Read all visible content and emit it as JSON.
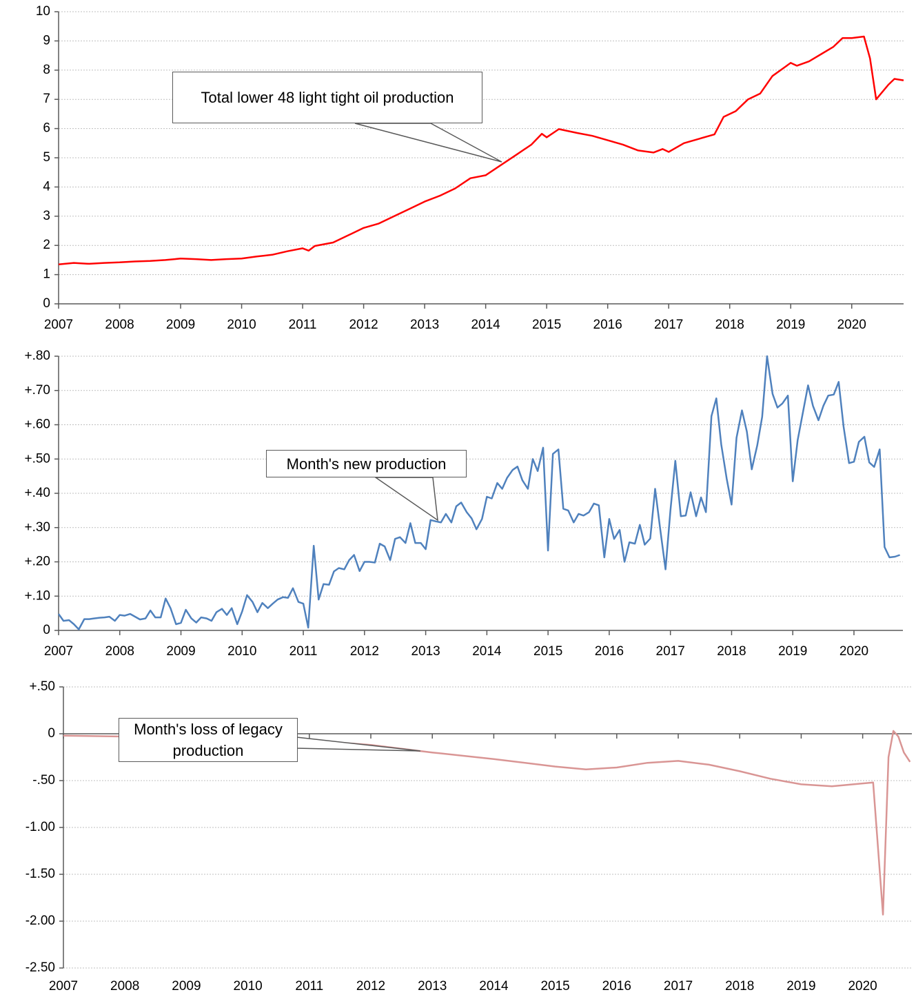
{
  "chart_data": [
    {
      "type": "line",
      "color": "#ff0000",
      "annotation": "Total lower 48 light tight oil production",
      "xlim": [
        2007,
        2020.85
      ],
      "xticks": [
        2007,
        2008,
        2009,
        2010,
        2011,
        2012,
        2013,
        2014,
        2015,
        2016,
        2017,
        2018,
        2019,
        2020
      ],
      "ylim": [
        0,
        10
      ],
      "yticks": [
        0,
        1,
        2,
        3,
        4,
        5,
        6,
        7,
        8,
        9,
        10
      ],
      "grid": true,
      "x": [
        2007,
        2007.25,
        2007.5,
        2007.75,
        2008,
        2008.25,
        2008.5,
        2008.75,
        2009,
        2009.25,
        2009.5,
        2009.75,
        2010,
        2010.25,
        2010.5,
        2010.75,
        2011,
        2011.1,
        2011.2,
        2011.5,
        2011.75,
        2012,
        2012.25,
        2012.5,
        2012.75,
        2013,
        2013.25,
        2013.5,
        2013.75,
        2014,
        2014.25,
        2014.5,
        2014.75,
        2014.92,
        2015,
        2015.2,
        2015.5,
        2015.75,
        2016,
        2016.25,
        2016.5,
        2016.75,
        2016.9,
        2017,
        2017.25,
        2017.5,
        2017.75,
        2017.9,
        2018.1,
        2018.3,
        2018.5,
        2018.7,
        2018.9,
        2019,
        2019.1,
        2019.3,
        2019.5,
        2019.7,
        2019.85,
        2020,
        2020.2,
        2020.3,
        2020.4,
        2020.6,
        2020.7,
        2020.85
      ],
      "values": [
        1.35,
        1.4,
        1.37,
        1.4,
        1.42,
        1.45,
        1.47,
        1.5,
        1.55,
        1.53,
        1.5,
        1.53,
        1.55,
        1.62,
        1.68,
        1.8,
        1.9,
        1.82,
        1.98,
        2.1,
        2.35,
        2.6,
        2.75,
        3.0,
        3.25,
        3.5,
        3.7,
        3.95,
        4.3,
        4.4,
        4.75,
        5.1,
        5.45,
        5.82,
        5.7,
        5.98,
        5.85,
        5.75,
        5.6,
        5.45,
        5.25,
        5.18,
        5.3,
        5.2,
        5.5,
        5.65,
        5.8,
        6.4,
        6.6,
        7.0,
        7.2,
        7.8,
        8.1,
        8.25,
        8.15,
        8.3,
        8.55,
        8.8,
        9.1,
        9.1,
        9.15,
        8.4,
        7.0,
        7.5,
        7.7,
        7.65
      ]
    },
    {
      "type": "line",
      "color": "#4f81bd",
      "annotation": "Month's new production",
      "xlim": [
        2007,
        2020.8
      ],
      "xticks": [
        2007,
        2008,
        2009,
        2010,
        2011,
        2012,
        2013,
        2014,
        2015,
        2016,
        2017,
        2018,
        2019,
        2020
      ],
      "ylim": [
        0,
        0.8
      ],
      "yticks": [
        0,
        {
          "value": 0.1,
          "label": "+.10"
        },
        {
          "value": 0.2,
          "label": "+.20"
        },
        {
          "value": 0.3,
          "label": "+.30"
        },
        {
          "value": 0.4,
          "label": "+.40"
        },
        {
          "value": 0.5,
          "label": "+.50"
        },
        {
          "value": 0.6,
          "label": "+.60"
        },
        {
          "value": 0.7,
          "label": "+.70"
        },
        {
          "value": 0.8,
          "label": "+.80"
        }
      ],
      "grid": true,
      "x": [
        2007,
        2007.08,
        2007.17,
        2007.25,
        2007.33,
        2007.42,
        2007.5,
        2007.58,
        2007.67,
        2007.75,
        2007.83,
        2007.92,
        2008,
        2008.08,
        2008.17,
        2008.25,
        2008.33,
        2008.42,
        2008.5,
        2008.58,
        2008.67,
        2008.75,
        2008.83,
        2008.92,
        2009,
        2009.08,
        2009.17,
        2009.25,
        2009.33,
        2009.42,
        2009.5,
        2009.58,
        2009.67,
        2009.75,
        2009.83,
        2009.92,
        2010,
        2010.08,
        2010.17,
        2010.25,
        2010.33,
        2010.42,
        2010.5,
        2010.58,
        2010.67,
        2010.75,
        2010.83,
        2010.92,
        2011,
        2011.08,
        2011.17,
        2011.25,
        2011.33,
        2011.42,
        2011.5,
        2011.58,
        2011.67,
        2011.75,
        2011.83,
        2011.92,
        2012,
        2012.08,
        2012.17,
        2012.25,
        2012.33,
        2012.42,
        2012.5,
        2012.58,
        2012.67,
        2012.75,
        2012.83,
        2012.92,
        2013,
        2013.08,
        2013.17,
        2013.25,
        2013.33,
        2013.42,
        2013.5,
        2013.58,
        2013.67,
        2013.75,
        2013.83,
        2013.92,
        2014,
        2014.08,
        2014.17,
        2014.25,
        2014.33,
        2014.42,
        2014.5,
        2014.58,
        2014.67,
        2014.75,
        2014.83,
        2014.92,
        2015,
        2015.08,
        2015.17,
        2015.25,
        2015.33,
        2015.42,
        2015.5,
        2015.58,
        2015.67,
        2015.75,
        2015.83,
        2015.92,
        2016,
        2016.08,
        2016.17,
        2016.25,
        2016.33,
        2016.42,
        2016.5,
        2016.58,
        2016.67,
        2016.75,
        2016.83,
        2016.92,
        2017,
        2017.08,
        2017.17,
        2017.25,
        2017.33,
        2017.42,
        2017.5,
        2017.58,
        2017.67,
        2017.75,
        2017.83,
        2017.92,
        2018,
        2018.08,
        2018.17,
        2018.25,
        2018.33,
        2018.42,
        2018.5,
        2018.58,
        2018.67,
        2018.75,
        2018.83,
        2018.92,
        2019,
        2019.08,
        2019.17,
        2019.25,
        2019.33,
        2019.42,
        2019.5,
        2019.58,
        2019.67,
        2019.75,
        2019.83,
        2019.92,
        2020,
        2020.08,
        2020.17,
        2020.25,
        2020.33,
        2020.42,
        2020.5,
        2020.58,
        2020.67,
        2020.75
      ],
      "values": [
        0.048,
        0.028,
        0.03,
        0.018,
        0.003,
        0.033,
        0.033,
        0.035,
        0.037,
        0.038,
        0.04,
        0.028,
        0.045,
        0.043,
        0.048,
        0.04,
        0.032,
        0.035,
        0.058,
        0.038,
        0.038,
        0.093,
        0.065,
        0.018,
        0.022,
        0.06,
        0.035,
        0.023,
        0.038,
        0.035,
        0.028,
        0.053,
        0.063,
        0.045,
        0.065,
        0.018,
        0.055,
        0.103,
        0.083,
        0.053,
        0.08,
        0.065,
        0.078,
        0.09,
        0.097,
        0.095,
        0.123,
        0.083,
        0.078,
        0.008,
        0.247,
        0.09,
        0.135,
        0.133,
        0.172,
        0.182,
        0.178,
        0.205,
        0.22,
        0.173,
        0.2,
        0.2,
        0.198,
        0.253,
        0.245,
        0.205,
        0.267,
        0.272,
        0.255,
        0.313,
        0.255,
        0.255,
        0.237,
        0.322,
        0.318,
        0.315,
        0.34,
        0.315,
        0.362,
        0.373,
        0.345,
        0.327,
        0.295,
        0.325,
        0.39,
        0.385,
        0.43,
        0.413,
        0.445,
        0.468,
        0.478,
        0.438,
        0.413,
        0.5,
        0.465,
        0.533,
        0.233,
        0.515,
        0.528,
        0.355,
        0.35,
        0.315,
        0.34,
        0.335,
        0.345,
        0.37,
        0.365,
        0.213,
        0.325,
        0.267,
        0.293,
        0.2,
        0.257,
        0.253,
        0.308,
        0.25,
        0.268,
        0.413,
        0.3,
        0.178,
        0.35,
        0.495,
        0.333,
        0.335,
        0.403,
        0.333,
        0.388,
        0.345,
        0.625,
        0.677,
        0.543,
        0.443,
        0.367,
        0.562,
        0.642,
        0.58,
        0.47,
        0.54,
        0.623,
        0.8,
        0.69,
        0.65,
        0.662,
        0.685,
        0.435,
        0.555,
        0.64,
        0.715,
        0.655,
        0.613,
        0.655,
        0.685,
        0.688,
        0.725,
        0.595,
        0.488,
        0.492,
        0.55,
        0.565,
        0.49,
        0.477,
        0.528,
        0.243,
        0.213,
        0.215,
        0.22
      ]
    },
    {
      "type": "line",
      "color": "#d99594",
      "annotation": "Month's loss of legacy production",
      "xlim": [
        2007,
        2020.8
      ],
      "xticks": [
        2007,
        2008,
        2009,
        2010,
        2011,
        2012,
        2013,
        2014,
        2015,
        2016,
        2017,
        2018,
        2019,
        2020
      ],
      "ylim": [
        -2.5,
        0.5
      ],
      "yticks": [
        {
          "value": -2.5,
          "label": "-2.50"
        },
        {
          "value": -2,
          "label": "-2.00"
        },
        {
          "value": -1.5,
          "label": "-1.50"
        },
        {
          "value": -1,
          "label": "-1.00"
        },
        {
          "value": -0.5,
          "label": "-.50"
        },
        0,
        {
          "value": 0.5,
          "label": "+.50"
        }
      ],
      "grid": true,
      "x": [
        2007,
        2009,
        2010,
        2011,
        2012,
        2013,
        2014,
        2015,
        2015.5,
        2016,
        2016.5,
        2017,
        2017.5,
        2018,
        2018.5,
        2019,
        2019.5,
        2020,
        2020.17,
        2020.33,
        2020.42,
        2020.5,
        2020.58,
        2020.67,
        2020.77
      ],
      "values": [
        -0.02,
        -0.04,
        -0.05,
        -0.07,
        -0.12,
        -0.2,
        -0.27,
        -0.35,
        -0.38,
        -0.36,
        -0.31,
        -0.29,
        -0.33,
        -0.4,
        -0.48,
        -0.54,
        -0.56,
        -0.53,
        -0.52,
        -1.93,
        -0.25,
        0.03,
        -0.03,
        -0.2,
        -0.3
      ]
    }
  ]
}
